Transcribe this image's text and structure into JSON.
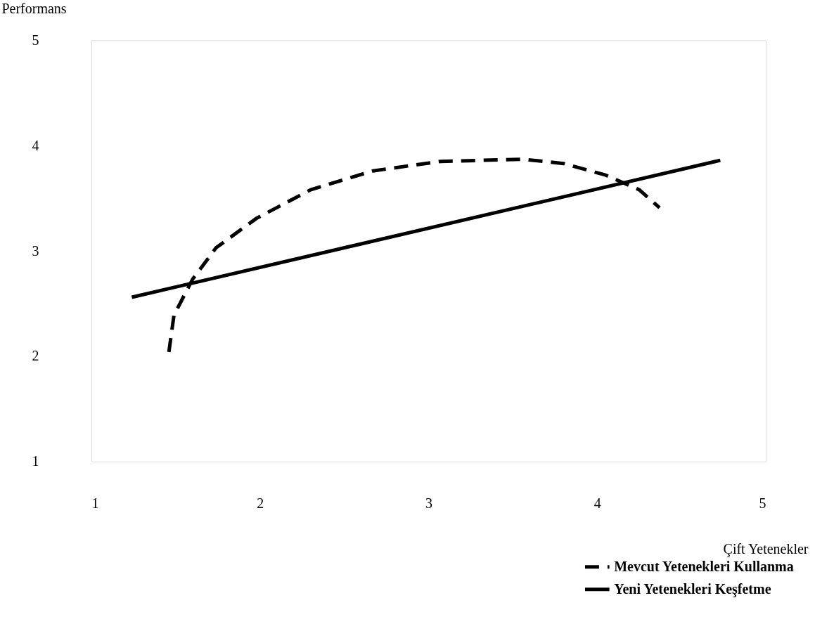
{
  "chart_data": {
    "type": "line",
    "xlabel": "Çift Yetenekler",
    "ylabel": "Performans",
    "xlim": [
      1,
      5
    ],
    "ylim": [
      1,
      5
    ],
    "xticks": [
      1,
      2,
      3,
      4,
      5
    ],
    "yticks": [
      1,
      2,
      3,
      4,
      5
    ],
    "grid": false,
    "legend": "bottom right",
    "marker": "none",
    "series": [
      {
        "name": "Mevcut Yetenekleri Kullanma",
        "color": "#000000",
        "line_style": "dashed",
        "x": [
          1.46,
          1.49,
          1.6,
          1.74,
          1.98,
          2.3,
          2.67,
          3.07,
          3.56,
          3.8,
          4.05,
          4.25,
          4.37
        ],
        "values": [
          2.04,
          2.39,
          2.73,
          3.03,
          3.31,
          3.58,
          3.76,
          3.85,
          3.87,
          3.83,
          3.72,
          3.58,
          3.41
        ]
      },
      {
        "name": "Yeni Yetenekleri Keşfetme",
        "color": "#000000",
        "line_style": "solid",
        "x": [
          1.24,
          4.73
        ],
        "values": [
          2.56,
          3.86
        ]
      }
    ]
  }
}
